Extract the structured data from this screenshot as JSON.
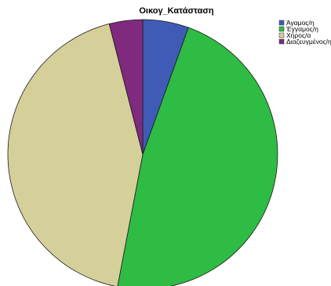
{
  "chart_data": {
    "type": "pie",
    "title": "Οικογ_Κατάσταση",
    "categories": [
      "Άγαμος/η",
      "Έγγαμος/η",
      "Χήρος/α",
      "Διαζευγμένος/η"
    ],
    "values": [
      5.5,
      47.5,
      43,
      4
    ],
    "colors": [
      "#3f5bb5",
      "#2ebc44",
      "#d5cf9a",
      "#7f2a7f"
    ],
    "start_angle": "top",
    "direction": "clockwise",
    "legend_position": "top-right"
  }
}
